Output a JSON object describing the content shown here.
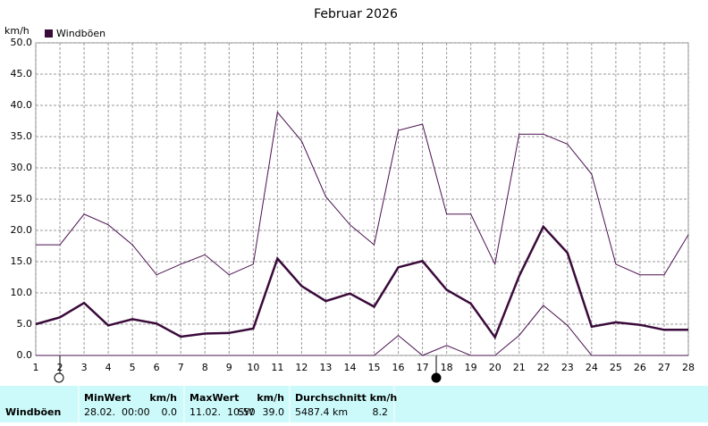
{
  "chart_data": {
    "type": "line",
    "title": "Februar 2026",
    "y_unit": "km/h",
    "x": [
      1,
      2,
      3,
      4,
      5,
      6,
      7,
      8,
      9,
      10,
      11,
      12,
      13,
      14,
      15,
      16,
      17,
      18,
      19,
      20,
      21,
      22,
      23,
      24,
      25,
      26,
      27,
      28
    ],
    "xlim": [
      1,
      28
    ],
    "xticks": [
      1,
      2,
      3,
      4,
      5,
      6,
      7,
      8,
      9,
      10,
      11,
      12,
      13,
      14,
      15,
      16,
      17,
      18,
      19,
      20,
      21,
      22,
      23,
      24,
      25,
      26,
      27,
      28
    ],
    "ylim": [
      0,
      50
    ],
    "yticks": [
      {
        "value": 0,
        "label": "0.0"
      },
      {
        "value": 5,
        "label": "5.0"
      },
      {
        "value": 10,
        "label": "10.0"
      },
      {
        "value": 15,
        "label": "15.0"
      },
      {
        "value": 20,
        "label": "20.0"
      },
      {
        "value": 25,
        "label": "25.0"
      },
      {
        "value": 30,
        "label": "30.0"
      },
      {
        "value": 35,
        "label": "35.0"
      },
      {
        "value": 40,
        "label": "40.0"
      },
      {
        "value": 45,
        "label": "45.0"
      },
      {
        "value": 50,
        "label": "50.0"
      }
    ],
    "grid": true,
    "series": [
      {
        "name": "Windböen",
        "color": "#3a0a3a",
        "values": [
          5.0,
          6.1,
          8.4,
          4.8,
          5.8,
          5.1,
          3.0,
          3.5,
          3.6,
          4.3,
          15.5,
          11.1,
          8.7,
          9.9,
          7.8,
          14.1,
          15.1,
          10.5,
          8.3,
          2.9,
          12.7,
          20.6,
          16.4,
          4.6,
          5.3,
          4.9,
          4.1,
          4.1
        ]
      },
      {
        "color": "#4a1050",
        "values": [
          17.7,
          17.7,
          22.6,
          20.9,
          17.7,
          12.9,
          14.6,
          16.1,
          12.9,
          14.6,
          38.9,
          34.3,
          25.4,
          20.9,
          17.7,
          36.0,
          37.0,
          22.6,
          22.6,
          14.6,
          35.4,
          35.4,
          33.8,
          29.0,
          14.6,
          12.9,
          12.9,
          19.3
        ]
      },
      {
        "color": "#4a1050",
        "values": [
          0,
          0,
          0,
          0,
          0,
          0,
          0,
          0,
          0,
          0,
          0,
          0,
          0,
          0,
          0,
          3.2,
          0,
          1.6,
          0,
          0,
          3.2,
          8.0,
          4.8,
          0,
          0,
          0,
          0,
          0
        ]
      }
    ]
  },
  "stats": {
    "row_label": "Windböen",
    "min": {
      "header": "MinWert",
      "unit": "km/h",
      "date": "28.02.  00:00",
      "value": "0.0"
    },
    "max": {
      "header": "MaxWert",
      "unit": "km/h",
      "date": "11.02.  10:50",
      "direction": "SW",
      "value": "39.0"
    },
    "avg": {
      "header": "Durchschnitt km/h",
      "distance": "5487.4 km",
      "value": "8.2"
    }
  }
}
